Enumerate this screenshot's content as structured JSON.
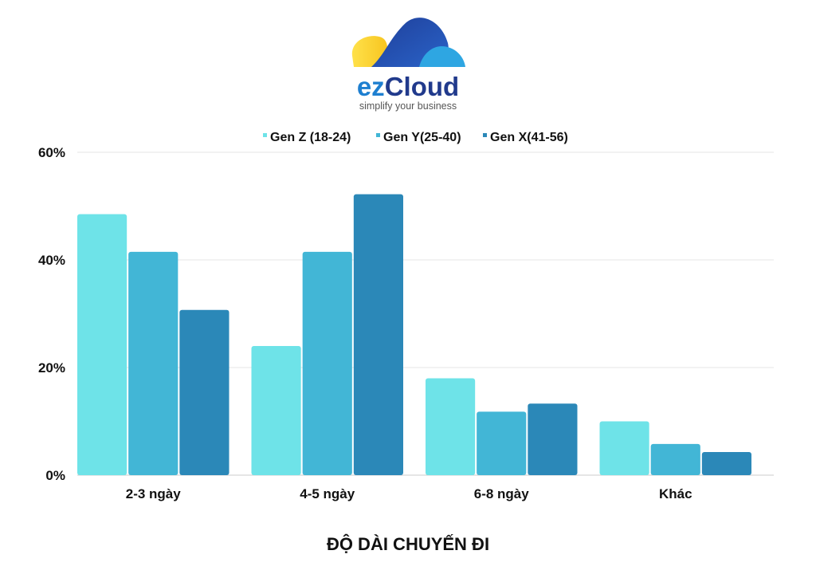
{
  "logo": {
    "name": "ezCloud",
    "name_part1": "ez",
    "name_part2": "Cloud",
    "tagline": "simplify your business"
  },
  "colors": {
    "gen_z": "#6ee3e8",
    "gen_y": "#42b6d6",
    "gen_x": "#2b88b8",
    "grid": "#e5e5e5",
    "axis": "#cccccc"
  },
  "chart_data": {
    "type": "bar",
    "title": "",
    "xlabel": "ĐỘ DÀI CHUYẾN ĐI",
    "ylabel": "",
    "ylim": [
      0,
      60
    ],
    "y_ticks": [
      "0%",
      "20%",
      "40%",
      "60%"
    ],
    "y_tick_values": [
      0,
      20,
      40,
      60
    ],
    "grid": true,
    "legend_position": "top",
    "categories": [
      "2-3 ngày",
      "4-5 ngày",
      "6-8 ngày",
      "Khác"
    ],
    "series": [
      {
        "name": "Gen Z (18-24)",
        "color": "#6ee3e8",
        "values": [
          48.5,
          24,
          18,
          10
        ]
      },
      {
        "name": "Gen Y(25-40)",
        "color": "#42b6d6",
        "values": [
          41.5,
          41.5,
          11.8,
          5.8
        ]
      },
      {
        "name": "Gen X(41-56)",
        "color": "#2b88b8",
        "values": [
          30.7,
          52.2,
          13.3,
          4.3
        ]
      }
    ]
  }
}
